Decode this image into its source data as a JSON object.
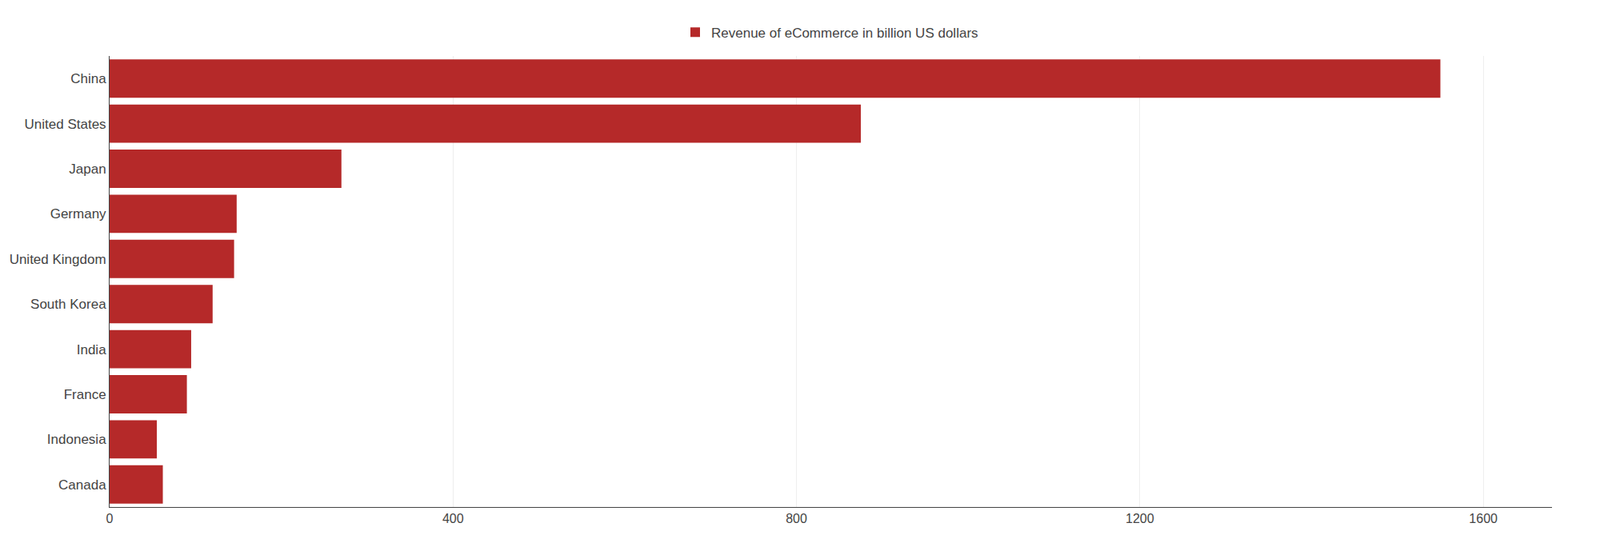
{
  "chart_data": {
    "type": "bar",
    "orientation": "horizontal",
    "categories": [
      "China",
      "United States",
      "Japan",
      "Germany",
      "United Kingdom",
      "South Korea",
      "India",
      "France",
      "Indonesia",
      "Canada"
    ],
    "series": [
      {
        "name": "Revenue of eCommerce in billion US dollars",
        "color": "#b52929",
        "values": [
          1550,
          875,
          270,
          148,
          145,
          120,
          95,
          90,
          55,
          62
        ]
      }
    ],
    "xlim": [
      0,
      1680
    ],
    "xticks": [
      0,
      400,
      800,
      1200,
      1600
    ],
    "grid": true,
    "legend": "top"
  }
}
